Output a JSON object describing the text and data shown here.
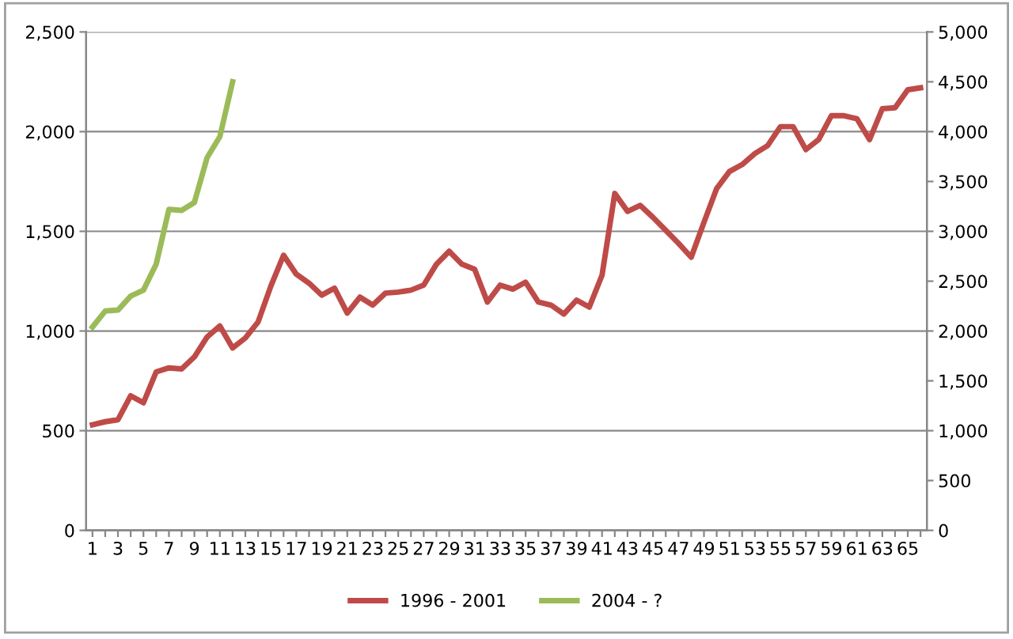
{
  "chart_data": {
    "type": "line",
    "categories": [
      "1",
      null,
      "3",
      null,
      "5",
      null,
      "7",
      null,
      "9",
      null,
      "11",
      null,
      "13",
      null,
      "15",
      null,
      "17",
      null,
      "19",
      null,
      "21",
      null,
      "23",
      null,
      "25",
      null,
      "27",
      null,
      "29",
      null,
      "31",
      null,
      "33",
      null,
      "35",
      null,
      "37",
      null,
      "39",
      null,
      "41",
      null,
      "43",
      null,
      "45",
      null,
      "47",
      null,
      "49",
      null,
      "51",
      null,
      "53",
      null,
      "55",
      null,
      "57",
      null,
      "59",
      null,
      "61",
      null,
      "63",
      null,
      "65",
      null
    ],
    "series": [
      {
        "name": "1996 - 2001",
        "color": "#be4b48",
        "values": [
          530,
          545,
          555,
          675,
          640,
          795,
          815,
          810,
          870,
          970,
          1025,
          915,
          965,
          1045,
          1225,
          1380,
          1285,
          1240,
          1180,
          1215,
          1090,
          1170,
          1130,
          1190,
          1195,
          1205,
          1230,
          1335,
          1400,
          1335,
          1310,
          1145,
          1230,
          1210,
          1245,
          1145,
          1130,
          1085,
          1155,
          1120,
          1280,
          1690,
          1600,
          1630,
          1570,
          1505,
          1440,
          1370,
          1545,
          1715,
          1800,
          1835,
          1890,
          1930,
          2025,
          2025,
          1910,
          1960,
          2080,
          2080,
          2065,
          1960,
          2115,
          2120,
          2210,
          2220
        ]
      },
      {
        "name": "2004 - ?",
        "color": "#9bbb59",
        "axis": "y2",
        "values": [
          2040,
          2200,
          2210,
          2350,
          2410,
          2670,
          3220,
          3210,
          3290,
          3740,
          3950,
          4500,
          null,
          null,
          null,
          null,
          null,
          null,
          null,
          null,
          null,
          null,
          null,
          null,
          null,
          null,
          null,
          null,
          null,
          null,
          null,
          null,
          null,
          null,
          null,
          null,
          null,
          null,
          null,
          null,
          null,
          null,
          null,
          null,
          null,
          null,
          null,
          null,
          null,
          null,
          null,
          null,
          null,
          null,
          null,
          null,
          null,
          null,
          null,
          null,
          null,
          null,
          null,
          null,
          null,
          null
        ]
      }
    ],
    "ylim": [
      0,
      2500
    ],
    "yticks": [
      {
        "value": 0,
        "label": "0"
      },
      {
        "value": 500,
        "label": "500"
      },
      {
        "value": 1000,
        "label": "1,000"
      },
      {
        "value": 1500,
        "label": "1,500"
      },
      {
        "value": 2000,
        "label": "2,000"
      },
      {
        "value": 2500,
        "label": "2,500"
      }
    ],
    "y2lim": [
      0,
      5000
    ],
    "y2ticks": [
      {
        "value": 0,
        "label": "0"
      },
      {
        "value": 500,
        "label": "500"
      },
      {
        "value": 1000,
        "label": "1,000"
      },
      {
        "value": 1500,
        "label": "1,500"
      },
      {
        "value": 2000,
        "label": "2,000"
      },
      {
        "value": 2500,
        "label": "2,500"
      },
      {
        "value": 3000,
        "label": "3,000"
      },
      {
        "value": 3500,
        "label": "3,500"
      },
      {
        "value": 4000,
        "label": "4,000"
      },
      {
        "value": 4500,
        "label": "4,500"
      },
      {
        "value": 5000,
        "label": "5,000"
      }
    ],
    "grid": "y",
    "legend": "bottom",
    "marker": "none",
    "line_style": "solid"
  }
}
